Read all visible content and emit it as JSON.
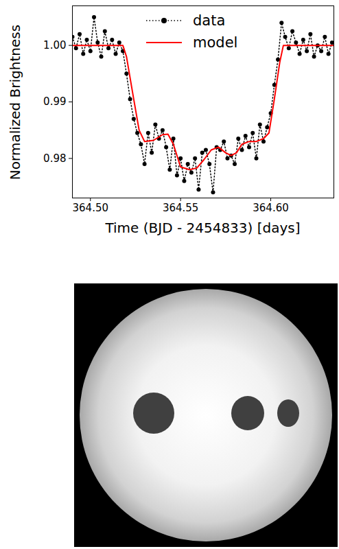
{
  "chart_data": {
    "type": "line",
    "x_label": "Time (BJD - 2454833) [days]",
    "y_label": "Normalized Brightness",
    "xlim": [
      364.49,
      364.635
    ],
    "xticks": [
      {
        "value": 364.5,
        "label": "364.50"
      },
      {
        "value": 364.55,
        "label": "364.55"
      },
      {
        "value": 364.6,
        "label": "364.60"
      }
    ],
    "ylim": [
      0.973,
      1.007
    ],
    "yticks": [
      {
        "value": 0.98,
        "label": "0.98"
      },
      {
        "value": 0.99,
        "label": "0.99"
      },
      {
        "value": 1.0,
        "label": "1.00"
      }
    ],
    "legend": "upper center",
    "grid": false,
    "series": [
      {
        "name": "data",
        "color": "#000000",
        "marker": "circle",
        "line_style": "dotted",
        "x": [
          364.49,
          364.492,
          364.494,
          364.496,
          364.498,
          364.5,
          364.502,
          364.504,
          364.506,
          364.508,
          364.51,
          364.512,
          364.514,
          364.516,
          364.518,
          364.52,
          364.522,
          364.524,
          364.526,
          364.528,
          364.53,
          364.532,
          364.534,
          364.536,
          364.538,
          364.54,
          364.542,
          364.544,
          364.546,
          364.548,
          364.55,
          364.552,
          364.554,
          364.556,
          364.558,
          364.56,
          364.562,
          364.564,
          364.566,
          364.568,
          364.57,
          364.572,
          364.574,
          364.576,
          364.578,
          364.58,
          364.582,
          364.584,
          364.586,
          364.588,
          364.59,
          364.592,
          364.594,
          364.596,
          364.598,
          364.6,
          364.602,
          364.604,
          364.606,
          364.608,
          364.61,
          364.612,
          364.614,
          364.616,
          364.618,
          364.62,
          364.622,
          364.624,
          364.626,
          364.628,
          364.63,
          364.632,
          364.634
        ],
        "values": [
          1.0015,
          0.9995,
          1.002,
          0.9985,
          1.001,
          0.999,
          1.005,
          1.0005,
          0.998,
          1.0025,
          0.9995,
          1.001,
          0.9985,
          1.0005,
          0.999,
          0.995,
          0.9905,
          0.987,
          0.9845,
          0.9825,
          0.979,
          0.9845,
          0.981,
          0.986,
          0.9835,
          0.985,
          0.982,
          0.978,
          0.9835,
          0.977,
          0.98,
          0.976,
          0.979,
          0.9775,
          0.98,
          0.9745,
          0.981,
          0.9815,
          0.979,
          0.974,
          0.982,
          0.9815,
          0.983,
          0.98,
          0.9805,
          0.979,
          0.9835,
          0.9815,
          0.984,
          0.982,
          0.9845,
          0.98,
          0.986,
          0.983,
          0.9855,
          0.988,
          0.993,
          0.9975,
          1.004,
          1.0015,
          0.9995,
          1.0025,
          1.0005,
          0.9985,
          1.001,
          0.999,
          1.002,
          0.998,
          1.0,
          0.999,
          1.0015,
          0.9985,
          1.0005
        ]
      },
      {
        "name": "model",
        "color": "#ff0000",
        "line_style": "solid",
        "x": [
          364.49,
          364.518,
          364.52,
          364.524,
          364.527,
          364.53,
          364.535,
          364.54,
          364.543,
          364.546,
          364.55,
          364.555,
          364.559,
          364.563,
          364.567,
          364.571,
          364.575,
          364.578,
          364.581,
          364.584,
          364.588,
          364.592,
          364.596,
          364.599,
          364.602,
          364.605,
          364.607,
          364.635
        ],
        "values": [
          1.0,
          1.0,
          0.998,
          0.9905,
          0.985,
          0.983,
          0.9832,
          0.9842,
          0.9843,
          0.9825,
          0.9785,
          0.978,
          0.9783,
          0.9798,
          0.9815,
          0.982,
          0.981,
          0.9805,
          0.981,
          0.9825,
          0.983,
          0.983,
          0.9835,
          0.9845,
          0.9905,
          0.997,
          1.0,
          1.0
        ]
      }
    ]
  }
}
